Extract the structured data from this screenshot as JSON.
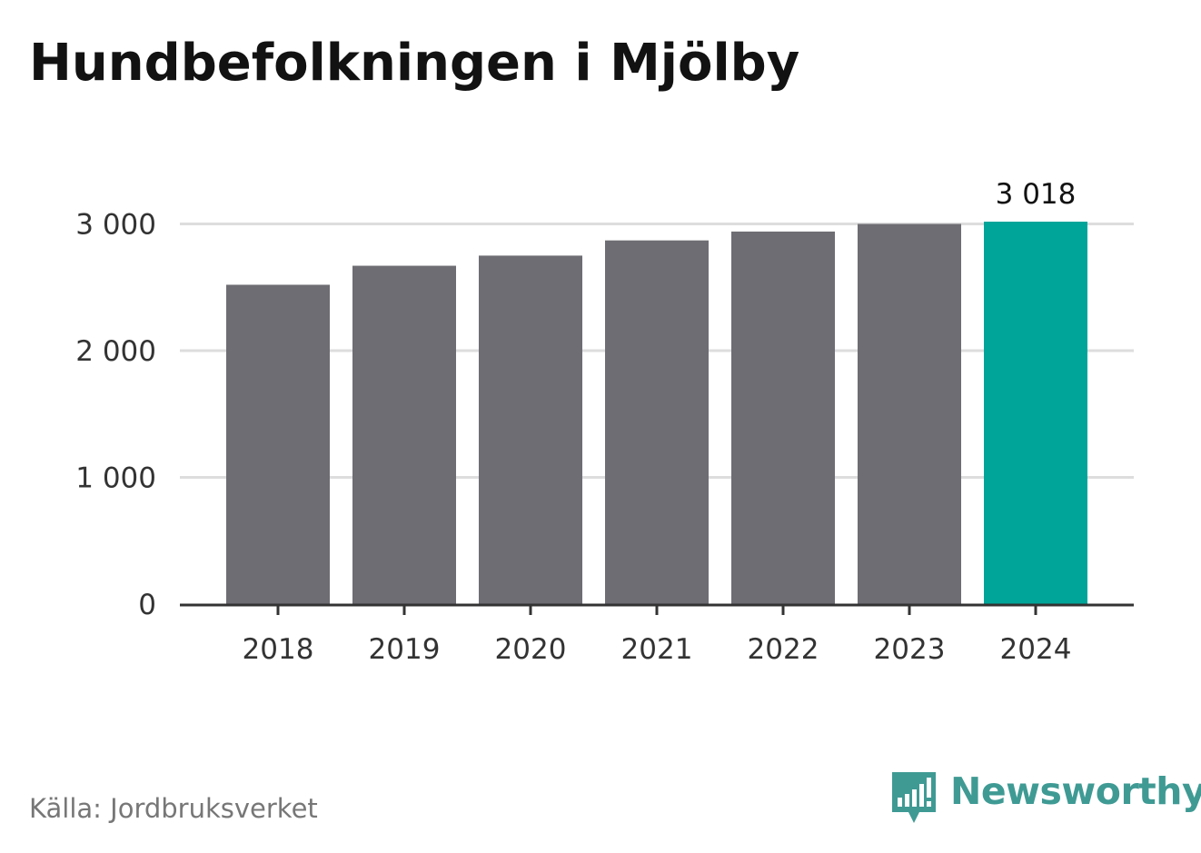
{
  "title": "Hundbefolkningen i Mjölby",
  "source": "Källa: Jordbruksverket",
  "brand": {
    "name": "Newsworthy",
    "logo_icon": "newsworthy-bar-chart-speech-bubble-icon",
    "color": "#3f9a94"
  },
  "colors": {
    "bar": "#6e6d73",
    "highlight": "#00a59a",
    "grid": "#dddddd",
    "axis": "#333333"
  },
  "chart_data": {
    "type": "bar",
    "categories": [
      "2018",
      "2019",
      "2020",
      "2021",
      "2022",
      "2023",
      "2024"
    ],
    "values": [
      2520,
      2670,
      2750,
      2870,
      2940,
      3000,
      3018
    ],
    "highlight_index": 6,
    "data_labels": [
      {
        "index": 6,
        "text": "3 018"
      }
    ],
    "yticks": [
      0,
      1000,
      2000,
      3000
    ],
    "ytick_labels": [
      "0",
      "1 000",
      "2 000",
      "3 000"
    ],
    "ylim": [
      0,
      3018
    ],
    "grid": true,
    "xlabel": "",
    "ylabel": ""
  }
}
